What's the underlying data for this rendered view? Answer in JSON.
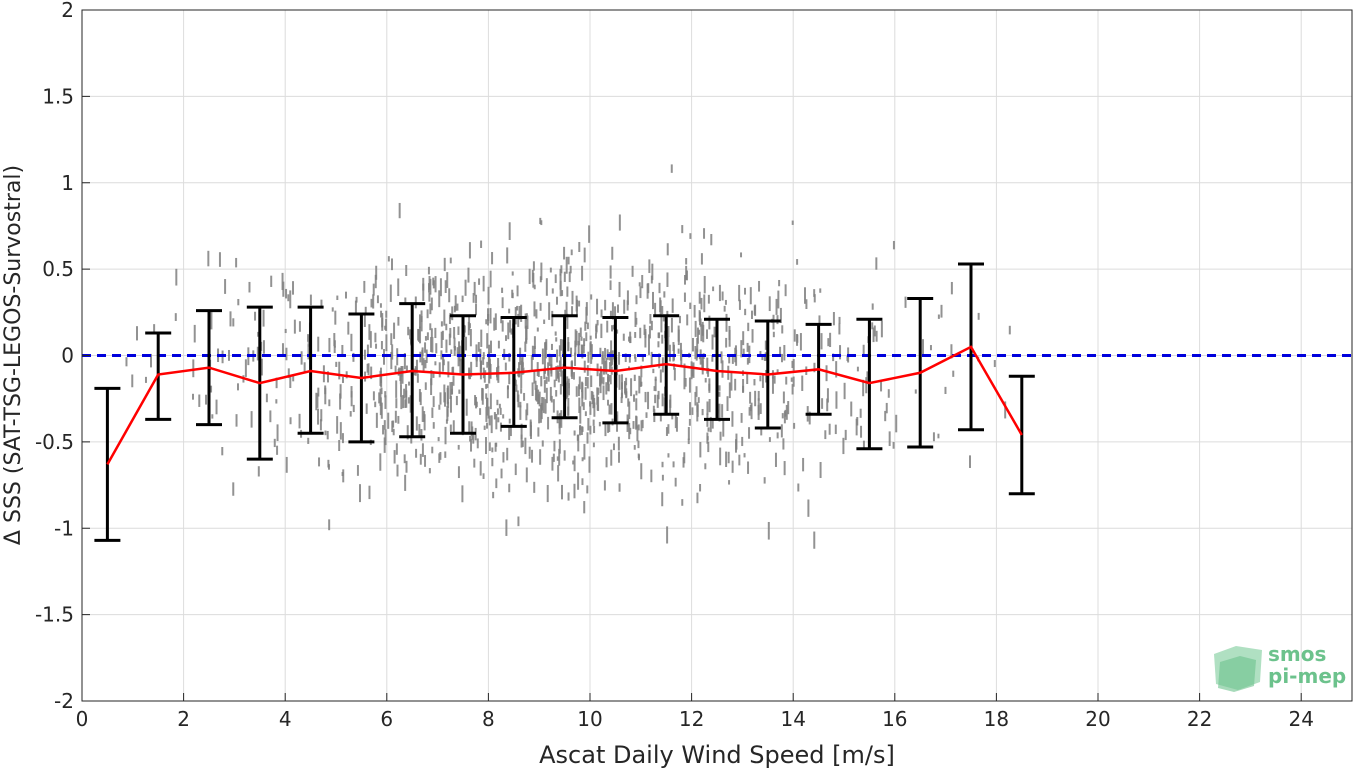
{
  "chart_data": {
    "type": "scatter",
    "title": "",
    "xlabel": "Ascat Daily Wind Speed [m/s]",
    "ylabel": "Δ SSS (SAT-TSG-LEGOS-Survostral)",
    "xlim": [
      0,
      25
    ],
    "ylim": [
      -2,
      2
    ],
    "xticks": [
      "0",
      "2",
      "4",
      "6",
      "8",
      "10",
      "12",
      "14",
      "16",
      "18",
      "20",
      "22",
      "24"
    ],
    "yticks": [
      "2",
      "1.5",
      "1",
      "0.5",
      "0",
      "-0.5",
      "-1",
      "-1.5",
      "-2"
    ],
    "grid": true,
    "reference_line": {
      "y": 0,
      "color": "#0000dd",
      "style": "dashed"
    },
    "binned_mean": {
      "color": "#ff0000",
      "x": [
        0.5,
        1.5,
        2.5,
        3.5,
        4.5,
        5.5,
        6.5,
        7.5,
        8.5,
        9.5,
        10.5,
        11.5,
        12.5,
        13.5,
        14.5,
        15.5,
        16.5,
        17.5,
        18.5
      ],
      "y": [
        -0.63,
        -0.11,
        -0.07,
        -0.16,
        -0.09,
        -0.13,
        -0.09,
        -0.11,
        -0.1,
        -0.07,
        -0.09,
        -0.05,
        -0.09,
        -0.11,
        -0.08,
        -0.16,
        -0.1,
        0.05,
        -0.46
      ]
    },
    "error_bars": {
      "color": "#000000",
      "x": [
        0.5,
        1.5,
        2.5,
        3.5,
        4.5,
        5.5,
        6.5,
        7.5,
        8.5,
        9.5,
        10.5,
        11.5,
        12.5,
        13.5,
        14.5,
        15.5,
        16.5,
        17.5,
        18.5
      ],
      "upper": [
        -0.19,
        0.13,
        0.26,
        0.28,
        0.28,
        0.24,
        0.3,
        0.23,
        0.22,
        0.23,
        0.22,
        0.23,
        0.21,
        0.2,
        0.18,
        0.21,
        0.33,
        0.53,
        -0.12
      ],
      "lower": [
        -1.07,
        -0.37,
        -0.4,
        -0.6,
        -0.45,
        -0.5,
        -0.47,
        -0.45,
        -0.41,
        -0.36,
        -0.39,
        -0.34,
        -0.37,
        -0.42,
        -0.34,
        -0.54,
        -0.53,
        -0.43,
        -0.8
      ]
    },
    "scatter": {
      "color": "#808080",
      "description_points_x_range": [
        0.8,
        18.5
      ],
      "x_center": 9.5,
      "y_mean": -0.08,
      "y_spread": 0.33
    }
  },
  "logo": {
    "line1": "smos",
    "line2": "pi-mep",
    "color": "#6cc28c"
  }
}
